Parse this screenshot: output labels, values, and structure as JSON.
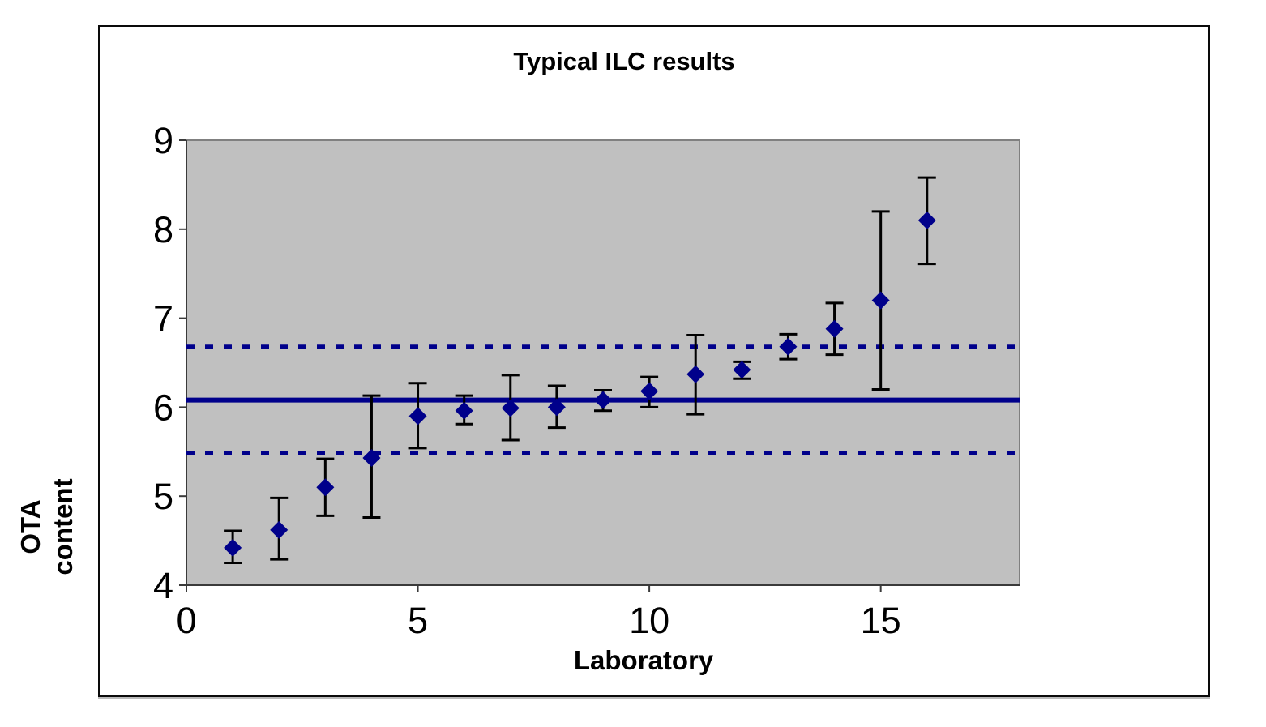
{
  "chart": {
    "title": "Typical ILC results",
    "x_axis_label": "Laboratory",
    "y_axis_label_line1": "OTA",
    "y_axis_label_line2": "content"
  },
  "chart_data": {
    "type": "scatter",
    "title": "Typical ILC results",
    "xlabel": "Laboratory",
    "ylabel": "OTA content",
    "x": [
      1,
      2,
      3,
      4,
      5,
      6,
      7,
      8,
      9,
      10,
      11,
      12,
      13,
      14,
      15,
      16
    ],
    "y": [
      4.42,
      4.62,
      5.1,
      5.43,
      5.9,
      5.96,
      5.99,
      6.0,
      6.08,
      6.18,
      6.37,
      6.42,
      6.68,
      6.88,
      7.2,
      8.1
    ],
    "y_err_minus": [
      0.17,
      0.33,
      0.32,
      0.67,
      0.36,
      0.15,
      0.36,
      0.23,
      0.12,
      0.18,
      0.45,
      0.1,
      0.14,
      0.29,
      1.0,
      0.49
    ],
    "y_err_plus": [
      0.19,
      0.36,
      0.32,
      0.7,
      0.37,
      0.17,
      0.37,
      0.24,
      0.11,
      0.16,
      0.44,
      0.09,
      0.14,
      0.29,
      1.0,
      0.48
    ],
    "reference_lines": {
      "mean_solid": 6.08,
      "upper_dashed": 6.68,
      "lower_dashed": 5.48
    },
    "xlim": [
      0,
      18
    ],
    "ylim": [
      4,
      9
    ],
    "x_ticks": [
      0,
      5,
      10,
      15
    ],
    "y_ticks": [
      4,
      5,
      6,
      7,
      8,
      9
    ],
    "grid": false,
    "legend": null,
    "colors": {
      "marker": "#00008B",
      "reference_line": "#00008B",
      "error_bar": "#000000",
      "plot_bg": "#C0C0C0",
      "plot_border": "#808080",
      "axis_line": "#3a3a3a",
      "tick_label": "#000000"
    }
  }
}
